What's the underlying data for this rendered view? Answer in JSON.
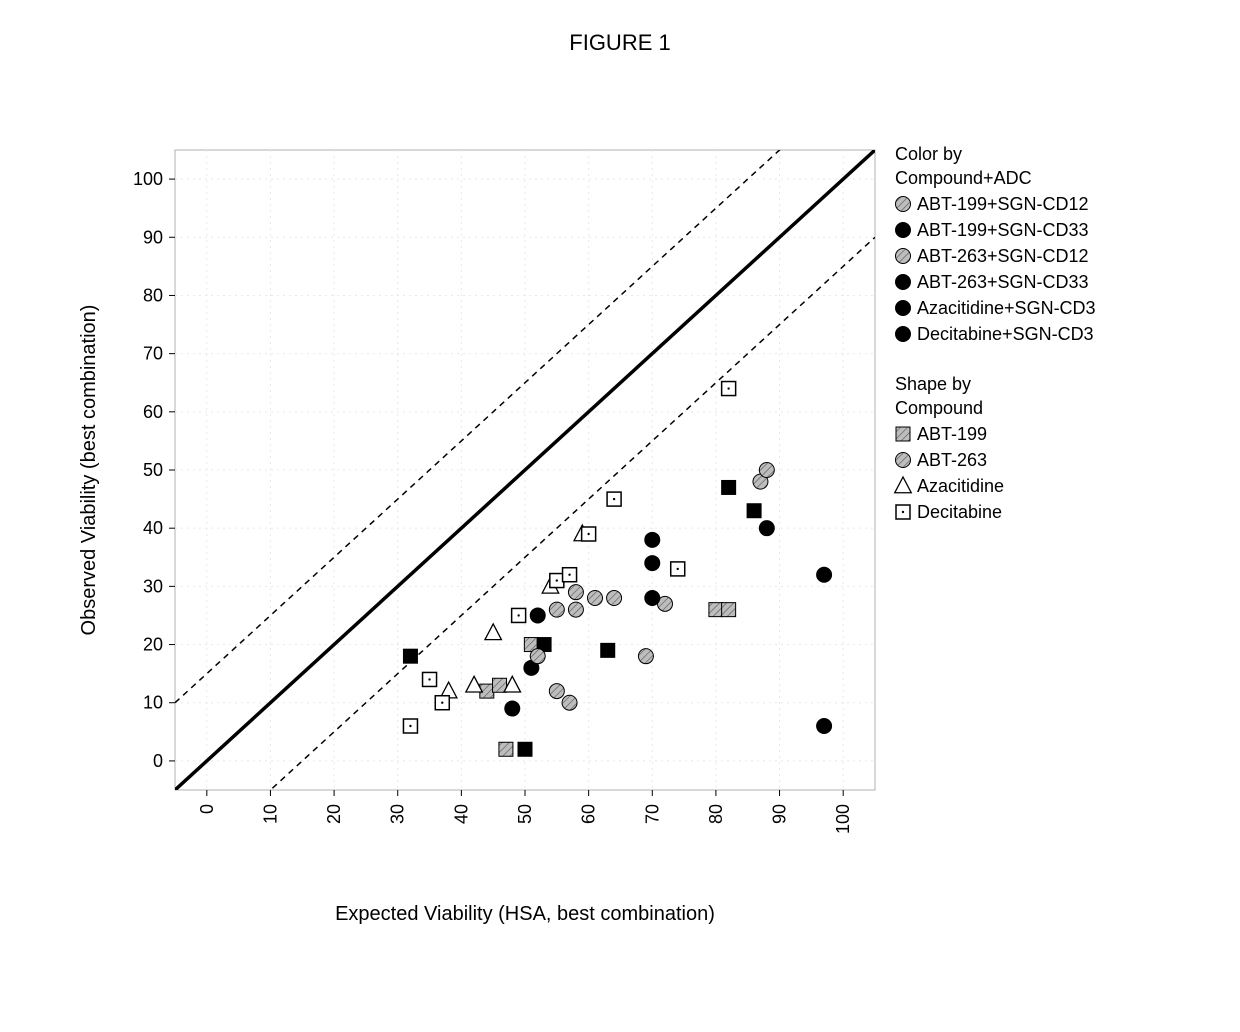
{
  "figure_title": "FIGURE 1",
  "chart": {
    "type": "scatter",
    "background_color": "#ffffff",
    "plot_border_color": "#b0b0b0",
    "grid_color": "#e8e8e8",
    "xlabel": "Expected Viability (HSA, best combination)",
    "ylabel": "Observed Viability (best combination)",
    "axis_label_fontsize": 20,
    "tick_fontsize": 18,
    "legend_fontsize": 18,
    "xlim": [
      -5,
      105
    ],
    "ylim": [
      -5,
      105
    ],
    "xticks": [
      0,
      10,
      20,
      30,
      40,
      50,
      60,
      70,
      80,
      90,
      100
    ],
    "yticks": [
      0,
      10,
      20,
      30,
      40,
      50,
      60,
      70,
      80,
      90,
      100
    ],
    "xtick_rotation_deg": -90,
    "diagonal_lines": [
      {
        "y_intercept": 0,
        "slope": 1,
        "width": 3.5,
        "dash": null,
        "color": "#000000"
      },
      {
        "y_intercept": 15,
        "slope": 1,
        "width": 1.5,
        "dash": "6,5",
        "color": "#000000"
      },
      {
        "y_intercept": -15,
        "slope": 1,
        "width": 1.5,
        "dash": "6,5",
        "color": "#000000"
      }
    ],
    "marker_radius": 7.5,
    "marker_square_half": 7,
    "marker_triangle_size": 15,
    "points": [
      {
        "x": 32,
        "y": 18,
        "series": "ABT-199+SGN-CD33",
        "shape": "square"
      },
      {
        "x": 44,
        "y": 12,
        "series": "ABT-199+SGN-CD12",
        "shape": "square"
      },
      {
        "x": 46,
        "y": 13,
        "series": "ABT-199+SGN-CD12",
        "shape": "square"
      },
      {
        "x": 47,
        "y": 2,
        "series": "ABT-199+SGN-CD12",
        "shape": "square"
      },
      {
        "x": 50,
        "y": 2,
        "series": "ABT-199+SGN-CD33",
        "shape": "square"
      },
      {
        "x": 51,
        "y": 20,
        "series": "ABT-199+SGN-CD12",
        "shape": "square"
      },
      {
        "x": 53,
        "y": 20,
        "series": "ABT-199+SGN-CD33",
        "shape": "square"
      },
      {
        "x": 63,
        "y": 19,
        "series": "ABT-199+SGN-CD33",
        "shape": "square"
      },
      {
        "x": 80,
        "y": 26,
        "series": "ABT-199+SGN-CD12",
        "shape": "square"
      },
      {
        "x": 82,
        "y": 47,
        "series": "ABT-199+SGN-CD33",
        "shape": "square"
      },
      {
        "x": 86,
        "y": 43,
        "series": "ABT-199+SGN-CD33",
        "shape": "square"
      },
      {
        "x": 82,
        "y": 26,
        "series": "ABT-199+SGN-CD12",
        "shape": "square"
      },
      {
        "x": 48,
        "y": 9,
        "series": "ABT-263+SGN-CD33",
        "shape": "circle"
      },
      {
        "x": 51,
        "y": 16,
        "series": "ABT-263+SGN-CD33",
        "shape": "circle"
      },
      {
        "x": 52,
        "y": 25,
        "series": "ABT-263+SGN-CD33",
        "shape": "circle"
      },
      {
        "x": 52,
        "y": 18,
        "series": "ABT-263+SGN-CD12",
        "shape": "circle"
      },
      {
        "x": 55,
        "y": 12,
        "series": "ABT-263+SGN-CD12",
        "shape": "circle"
      },
      {
        "x": 55,
        "y": 26,
        "series": "ABT-263+SGN-CD12",
        "shape": "circle"
      },
      {
        "x": 57,
        "y": 10,
        "series": "ABT-263+SGN-CD12",
        "shape": "circle"
      },
      {
        "x": 58,
        "y": 26,
        "series": "ABT-263+SGN-CD12",
        "shape": "circle"
      },
      {
        "x": 58,
        "y": 29,
        "series": "ABT-263+SGN-CD12",
        "shape": "circle"
      },
      {
        "x": 61,
        "y": 28,
        "series": "ABT-263+SGN-CD12",
        "shape": "circle"
      },
      {
        "x": 64,
        "y": 28,
        "series": "ABT-263+SGN-CD12",
        "shape": "circle"
      },
      {
        "x": 69,
        "y": 18,
        "series": "ABT-263+SGN-CD12",
        "shape": "circle"
      },
      {
        "x": 72,
        "y": 27,
        "series": "ABT-263+SGN-CD12",
        "shape": "circle"
      },
      {
        "x": 70,
        "y": 28,
        "series": "ABT-263+SGN-CD33",
        "shape": "circle"
      },
      {
        "x": 70,
        "y": 38,
        "series": "ABT-263+SGN-CD33",
        "shape": "circle"
      },
      {
        "x": 70,
        "y": 34,
        "series": "ABT-263+SGN-CD33",
        "shape": "circle"
      },
      {
        "x": 87,
        "y": 48,
        "series": "ABT-263+SGN-CD12",
        "shape": "circle"
      },
      {
        "x": 88,
        "y": 50,
        "series": "ABT-263+SGN-CD12",
        "shape": "circle"
      },
      {
        "x": 88,
        "y": 40,
        "series": "ABT-263+SGN-CD33",
        "shape": "circle"
      },
      {
        "x": 97,
        "y": 6,
        "series": "ABT-263+SGN-CD33",
        "shape": "circle"
      },
      {
        "x": 97,
        "y": 32,
        "series": "ABT-263+SGN-CD33",
        "shape": "circle"
      },
      {
        "x": 38,
        "y": 12,
        "series": "Azacitidine+SGN-CD3",
        "shape": "triangle"
      },
      {
        "x": 42,
        "y": 13,
        "series": "Azacitidine+SGN-CD3",
        "shape": "triangle"
      },
      {
        "x": 45,
        "y": 22,
        "series": "Azacitidine+SGN-CD3",
        "shape": "triangle"
      },
      {
        "x": 48,
        "y": 13,
        "series": "Azacitidine+SGN-CD3",
        "shape": "triangle"
      },
      {
        "x": 54,
        "y": 30,
        "series": "Azacitidine+SGN-CD3",
        "shape": "triangle"
      },
      {
        "x": 59,
        "y": 39,
        "series": "Azacitidine+SGN-CD3",
        "shape": "triangle"
      },
      {
        "x": 32,
        "y": 6,
        "series": "Decitabine+SGN-CD3",
        "shape": "square_open"
      },
      {
        "x": 35,
        "y": 14,
        "series": "Decitabine+SGN-CD3",
        "shape": "square_open"
      },
      {
        "x": 37,
        "y": 10,
        "series": "Decitabine+SGN-CD3",
        "shape": "square_open"
      },
      {
        "x": 49,
        "y": 25,
        "series": "Decitabine+SGN-CD3",
        "shape": "square_open"
      },
      {
        "x": 55,
        "y": 31,
        "series": "Decitabine+SGN-CD3",
        "shape": "square_open"
      },
      {
        "x": 57,
        "y": 32,
        "series": "Decitabine+SGN-CD3",
        "shape": "square_open"
      },
      {
        "x": 60,
        "y": 39,
        "series": "Decitabine+SGN-CD3",
        "shape": "square_open"
      },
      {
        "x": 64,
        "y": 45,
        "series": "Decitabine+SGN-CD3",
        "shape": "square_open"
      },
      {
        "x": 74,
        "y": 33,
        "series": "Decitabine+SGN-CD3",
        "shape": "square_open"
      },
      {
        "x": 82,
        "y": 64,
        "series": "Decitabine+SGN-CD3",
        "shape": "square_open"
      }
    ],
    "series_colors": {
      "ABT-199+SGN-CD12": {
        "fill": "#9a9a9a",
        "pattern": "hatch",
        "stroke": "#000000"
      },
      "ABT-199+SGN-CD33": {
        "fill": "#000000",
        "pattern": null,
        "stroke": "#000000"
      },
      "ABT-263+SGN-CD12": {
        "fill": "#9a9a9a",
        "pattern": "hatch",
        "stroke": "#000000"
      },
      "ABT-263+SGN-CD33": {
        "fill": "#000000",
        "pattern": null,
        "stroke": "#000000"
      },
      "Azacitidine+SGN-CD3": {
        "fill": "#ffffff",
        "pattern": null,
        "stroke": "#000000"
      },
      "Decitabine+SGN-CD3": {
        "fill": "#ffffff",
        "pattern": null,
        "stroke": "#000000"
      }
    },
    "legends": {
      "color": {
        "title_line1": "Color by",
        "title_line2": "Compound+ADC",
        "items": [
          {
            "label": "ABT-199+SGN-CD12",
            "swatch_shape": "circle",
            "fill": "#9a9a9a",
            "pattern": "hatch"
          },
          {
            "label": "ABT-199+SGN-CD33",
            "swatch_shape": "circle",
            "fill": "#000000",
            "pattern": null
          },
          {
            "label": "ABT-263+SGN-CD12",
            "swatch_shape": "circle",
            "fill": "#9a9a9a",
            "pattern": "hatch"
          },
          {
            "label": "ABT-263+SGN-CD33",
            "swatch_shape": "circle",
            "fill": "#000000",
            "pattern": null
          },
          {
            "label": "Azacitidine+SGN-CD3",
            "swatch_shape": "circle",
            "fill": "#000000",
            "pattern": null
          },
          {
            "label": "Decitabine+SGN-CD3",
            "swatch_shape": "circle",
            "fill": "#000000",
            "pattern": null
          }
        ]
      },
      "shape": {
        "title_line1": "Shape by",
        "title_line2": "Compound",
        "items": [
          {
            "label": "ABT-199",
            "shape": "square",
            "fill": "#9a9a9a",
            "pattern": "hatch"
          },
          {
            "label": "ABT-263",
            "shape": "circle",
            "fill": "#9a9a9a",
            "pattern": "hatch"
          },
          {
            "label": "Azacitidine",
            "shape": "triangle",
            "fill": "#ffffff",
            "pattern": null
          },
          {
            "label": "Decitabine",
            "shape": "square_open",
            "fill": "#ffffff",
            "pattern": null
          }
        ]
      }
    }
  }
}
